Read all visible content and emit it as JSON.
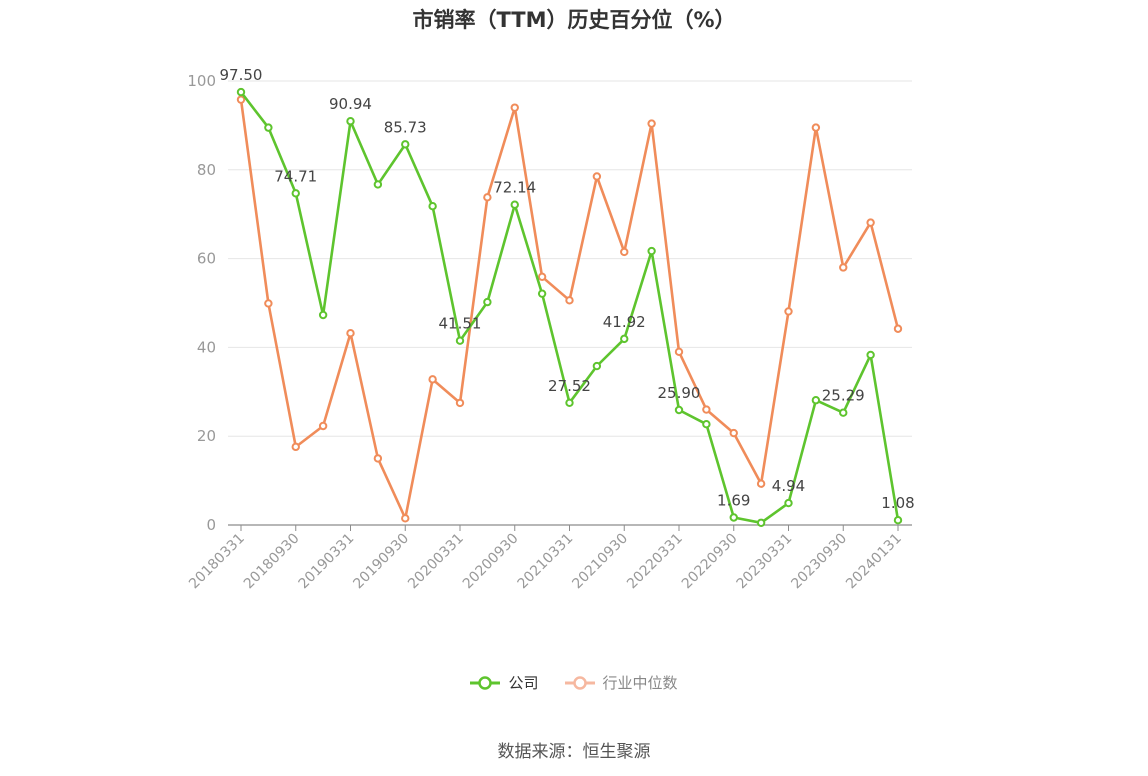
{
  "chart_data": {
    "type": "line",
    "title": "市销率（TTM）历史百分位（%）",
    "ylim": [
      0,
      100
    ],
    "yticks": [
      0,
      20,
      40,
      60,
      80,
      100
    ],
    "x": [
      "20180331",
      "20180630",
      "20180930",
      "20181231",
      "20190331",
      "20190630",
      "20190930",
      "20191231",
      "20200331",
      "20200630",
      "20200930",
      "20201231",
      "20210331",
      "20210630",
      "20210930",
      "20211231",
      "20220331",
      "20220630",
      "20220930",
      "20221231",
      "20230331",
      "20230630",
      "20230930",
      "20231231",
      "20240131"
    ],
    "xtick_labels": [
      "20180331",
      "20180930",
      "20190331",
      "20190930",
      "20200331",
      "20200930",
      "20210331",
      "20210930",
      "20220331",
      "20220930",
      "20230331",
      "20230930",
      "20240131"
    ],
    "grid": true,
    "legend_position": "bottom",
    "series": [
      {
        "name": "公司",
        "color": "#5ec42e",
        "values": [
          97.5,
          89.5,
          74.71,
          47.3,
          90.94,
          76.7,
          85.73,
          71.8,
          41.51,
          50.2,
          72.14,
          52.1,
          27.52,
          35.8,
          41.92,
          61.7,
          25.9,
          22.7,
          1.69,
          0.5,
          4.94,
          28.1,
          25.29,
          38.3,
          1.08
        ],
        "labels": [
          "97.50",
          "",
          "74.71",
          "",
          "90.94",
          "",
          "85.73",
          "",
          "41.51",
          "",
          "72.14",
          "",
          "27.52",
          "",
          "41.92",
          "",
          "25.90",
          "",
          "1.69",
          "",
          "4.94",
          "",
          "25.29",
          "",
          "1.08"
        ]
      },
      {
        "name": "行业中位数",
        "color": "#f08c5a",
        "values": [
          95.8,
          49.9,
          17.6,
          22.3,
          43.2,
          15.0,
          1.5,
          32.8,
          27.5,
          73.8,
          94.0,
          55.9,
          50.6,
          78.5,
          61.5,
          90.4,
          39.0,
          26.0,
          20.7,
          9.3,
          48.1,
          89.5,
          58.0,
          68.1,
          44.2
        ]
      }
    ]
  },
  "legend": {
    "company": "公司",
    "industry": "行业中位数"
  },
  "source": "数据来源：恒生聚源"
}
